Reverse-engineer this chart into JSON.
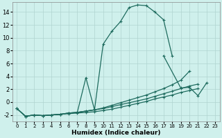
{
  "bg_color": "#cff0ec",
  "grid_color": "#b0d4d0",
  "line_color": "#1e6b5e",
  "xlabel": "Humidex (Indice chaleur)",
  "xlim": [
    -0.5,
    23.5
  ],
  "ylim": [
    -3.0,
    15.5
  ],
  "yticks": [
    -2,
    0,
    2,
    4,
    6,
    8,
    10,
    12,
    14
  ],
  "xticks": [
    0,
    1,
    2,
    3,
    4,
    5,
    6,
    7,
    8,
    9,
    10,
    11,
    12,
    13,
    14,
    15,
    16,
    17,
    18,
    19,
    20,
    21,
    22,
    23
  ],
  "series": [
    {
      "x": [
        0,
        1,
        2,
        3,
        4,
        5,
        6,
        7,
        9,
        10,
        11,
        12,
        13,
        14,
        15,
        16,
        17,
        18,
        19,
        20,
        21,
        22
      ],
      "y": [
        -1.0,
        -2.2,
        -2.0,
        -2.1,
        -2.0,
        -1.9,
        -1.7,
        -1.6,
        -1.2,
        9.0,
        11.0,
        12.5,
        14.7,
        15.1,
        15.0,
        14.0,
        12.8,
        7.2,
        null,
        null,
        null,
        null
      ]
    },
    {
      "x": [
        7,
        8,
        9
      ],
      "y": [
        -1.6,
        3.8,
        -1.2
      ]
    },
    {
      "x": [
        0,
        1,
        2,
        3,
        4,
        5,
        6,
        7,
        8,
        9,
        10,
        11,
        12,
        13,
        14,
        15,
        16,
        17,
        18,
        19,
        20
      ],
      "y": [
        -1.0,
        -2.2,
        -2.0,
        -2.1,
        -2.0,
        -1.9,
        -1.7,
        -1.6,
        -1.4,
        -1.2,
        -0.9,
        -0.5,
        -0.1,
        0.3,
        0.7,
        1.1,
        1.6,
        2.1,
        2.7,
        3.4,
        4.8
      ]
    },
    {
      "x": [
        0,
        1,
        2,
        3,
        4,
        5,
        6,
        7,
        8,
        9,
        10,
        11,
        12,
        13,
        14,
        15,
        16,
        17,
        18,
        19,
        20,
        21,
        22
      ],
      "y": [
        -1.0,
        -2.2,
        -2.0,
        -2.1,
        -2.0,
        -1.9,
        -1.7,
        -1.6,
        -1.4,
        -1.2,
        -1.0,
        -0.7,
        -0.4,
        -0.1,
        0.2,
        0.5,
        0.9,
        1.3,
        1.7,
        2.1,
        2.5,
        2.8,
        null
      ]
    },
    {
      "x": [
        0,
        1,
        2,
        3,
        4,
        5,
        6,
        7,
        8,
        9,
        10,
        11,
        12,
        13,
        14,
        15,
        16,
        17,
        18,
        19,
        20,
        21,
        22
      ],
      "y": [
        -1.0,
        -2.2,
        -2.0,
        -2.1,
        -2.0,
        -1.9,
        -1.8,
        -1.7,
        -1.6,
        -1.5,
        -1.3,
        -1.1,
        -0.8,
        -0.5,
        -0.2,
        0.1,
        0.5,
        0.8,
        1.1,
        1.5,
        1.8,
        2.1,
        null
      ]
    }
  ],
  "series2": [
    {
      "x": [
        17,
        19,
        20,
        21,
        22
      ],
      "y": [
        7.2,
        2.2,
        2.3,
        1.0,
        3.0
      ]
    }
  ]
}
